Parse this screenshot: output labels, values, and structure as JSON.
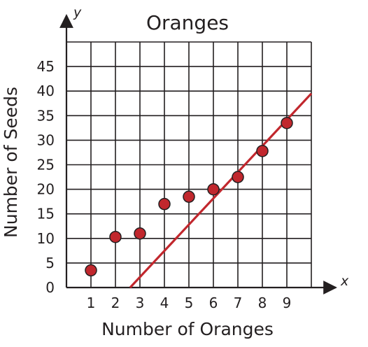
{
  "chart_data": {
    "type": "scatter",
    "title": "Oranges",
    "xlabel": "Number of Oranges",
    "ylabel": "Number of Seeds",
    "x_axis_letter": "x",
    "y_axis_letter": "y",
    "x_ticks": [
      "1",
      "2",
      "3",
      "4",
      "5",
      "6",
      "7",
      "8",
      "9"
    ],
    "y_ticks": [
      "0",
      "5",
      "10",
      "15",
      "20",
      "25",
      "30",
      "35",
      "40",
      "45"
    ],
    "xlim": [
      0,
      10
    ],
    "ylim": [
      0,
      50
    ],
    "grid": true,
    "points": [
      {
        "x": 1,
        "y": 3.5
      },
      {
        "x": 2,
        "y": 10.3
      },
      {
        "x": 3,
        "y": 11
      },
      {
        "x": 4,
        "y": 17
      },
      {
        "x": 5,
        "y": 18.5
      },
      {
        "x": 6,
        "y": 20
      },
      {
        "x": 7,
        "y": 22.5
      },
      {
        "x": 8,
        "y": 27.8
      },
      {
        "x": 9,
        "y": 33.5
      }
    ],
    "trend_line": {
      "x1": 2.6,
      "y1": 0,
      "x2": 10,
      "y2": 39.5
    },
    "colors": {
      "point_fill": "#c1272d",
      "line": "#c1272d",
      "grid": "#231f20",
      "text": "#231f20"
    }
  }
}
